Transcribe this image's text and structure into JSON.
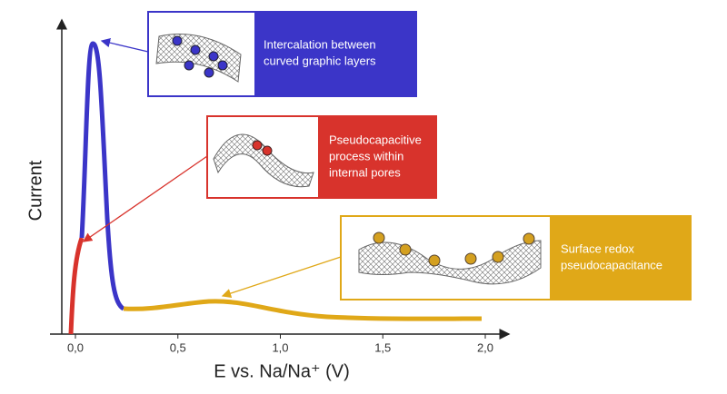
{
  "axes": {
    "y_label": "Current",
    "x_label": "E vs. Na/Na⁺ (V)",
    "x_ticks": [
      "0,0",
      "0,5",
      "1,0",
      "1,5",
      "2,0"
    ]
  },
  "callouts": [
    {
      "lines": [
        "Intercalation between",
        "curved graphic layers"
      ]
    },
    {
      "lines": [
        "Pseudocapacitive",
        "process within",
        "internal pores"
      ]
    },
    {
      "lines": [
        "Surface redox",
        "pseudocapacitance"
      ]
    }
  ]
}
